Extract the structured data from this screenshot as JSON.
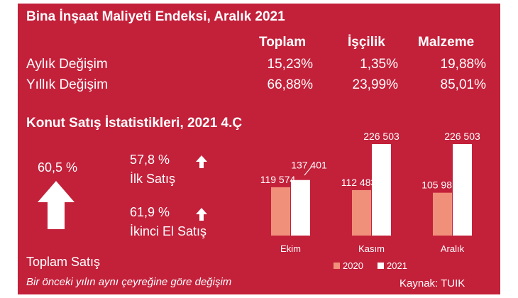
{
  "index": {
    "title": "Bina İnşaat Maliyeti Endeksi, Aralık 2021",
    "columns": [
      "Toplam",
      "İşçilik",
      "Malzeme"
    ],
    "rows": [
      {
        "label": "Aylık Değişim",
        "values": [
          "15,23%",
          "1,35%",
          "19,88%"
        ]
      },
      {
        "label": "Yıllık Değişim",
        "values": [
          "66,88%",
          "23,99%",
          "85,01%"
        ]
      }
    ]
  },
  "sales": {
    "title": "Konut Satış İstatistikleri, 2021 4.Ç",
    "total_value": "60,5 %",
    "total_label": "Toplam Satış",
    "first_value": "57,8 %",
    "first_label": "İlk Satış",
    "second_value": "61,9 %",
    "second_label": "İkinci El Satış",
    "note": "Bir önceki yılın aynı çeyreğine göre değişim",
    "source": "Kaynak: TUIK"
  },
  "colors": {
    "background": "#c3203a",
    "series_2020": "#f1907a",
    "series_2021": "#ffffff"
  },
  "chart_data": {
    "type": "bar",
    "categories": [
      "Ekim",
      "Kasım",
      "Aralık"
    ],
    "series": [
      {
        "name": "2020",
        "values": [
          119574,
          112483,
          105981
        ],
        "labels": [
          "119 574",
          "112 483",
          "105 981"
        ]
      },
      {
        "name": "2021",
        "values": [
          137401,
          226503,
          226503
        ],
        "labels": [
          "137 401",
          "226 503",
          "226 503"
        ]
      }
    ],
    "ylim": [
      0,
      226503
    ],
    "grid": false,
    "legend": "bottom"
  }
}
